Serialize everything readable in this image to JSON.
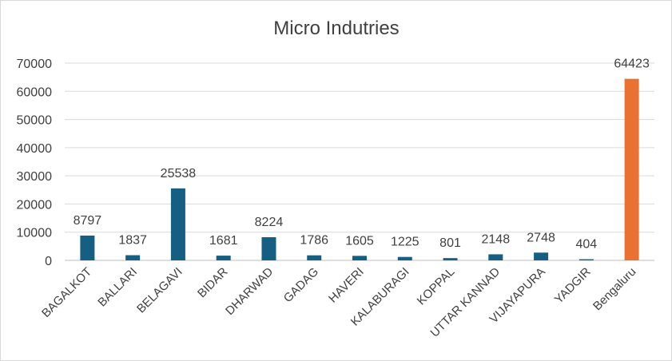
{
  "chart_data": {
    "type": "bar",
    "title": "Micro Indutries",
    "xlabel": "",
    "ylabel": "",
    "ylim": [
      0,
      70000
    ],
    "yticks": [
      0,
      10000,
      20000,
      30000,
      40000,
      50000,
      60000,
      70000
    ],
    "grid": true,
    "legend": "none",
    "categories": [
      "BAGALKOT",
      "BALLARI",
      "BELAGAVI",
      "BIDAR",
      "DHARWAD",
      "GADAG",
      "HAVERI",
      "KALABURAGI",
      "KOPPAL",
      "UTTAR KANNAD",
      "VIJAYAPURA",
      "YADGIR",
      "Bengaluru"
    ],
    "values": [
      8797,
      1837,
      25538,
      1681,
      8224,
      1786,
      1605,
      1225,
      801,
      2148,
      2748,
      404,
      64423
    ],
    "colors": {
      "default": "#156082",
      "highlight": "#E97132",
      "highlight_category": "Bengaluru"
    }
  }
}
